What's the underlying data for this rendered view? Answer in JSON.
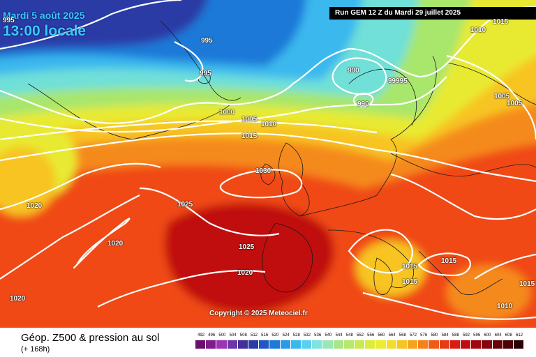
{
  "header": {
    "date": "Mardi 5 août 2025",
    "time": "13:00 locale",
    "run": "Run GEM 12 Z du Mardi 29 juillet 2025"
  },
  "copyright": "Copyright © 2025 Meteociel.fr",
  "footer": {
    "title": "Géop. Z500 & pression au sol",
    "subtitle": "(+ 168h)"
  },
  "isobars": [
    "995",
    "995",
    "995",
    "1000",
    "1005",
    "1010",
    "1015",
    "990",
    "990",
    "99995",
    "1010",
    "1015",
    "1005",
    "1005",
    "1030",
    "1025",
    "1020",
    "1020",
    "1025",
    "1020",
    "1020",
    "1015",
    "1015",
    "1015",
    "1010",
    "1015"
  ],
  "scale": {
    "labels": [
      "492",
      "496",
      "500",
      "504",
      "508",
      "512",
      "516",
      "520",
      "524",
      "528",
      "532",
      "536",
      "540",
      "544",
      "548",
      "552",
      "556",
      "560",
      "564",
      "568",
      "572",
      "576",
      "580",
      "584",
      "588",
      "592",
      "596",
      "600",
      "604",
      "608",
      "612"
    ],
    "colors": [
      "#6a0f6a",
      "#7e1b8e",
      "#9b33b3",
      "#6a36a8",
      "#41309a",
      "#2b3ba6",
      "#1f58c4",
      "#1e79d8",
      "#2a99e6",
      "#3bb8ee",
      "#58d0ee",
      "#7fe3e0",
      "#9be6b8",
      "#a8e68a",
      "#b6e86a",
      "#c8ea50",
      "#dcec3a",
      "#ecec30",
      "#f3dc2a",
      "#f6c424",
      "#f6a41e",
      "#f4821a",
      "#ef5c17",
      "#e53a14",
      "#d81d12",
      "#c00d10",
      "#a2060d",
      "#84040a",
      "#660308",
      "#4a0206",
      "#2a0104"
    ]
  }
}
